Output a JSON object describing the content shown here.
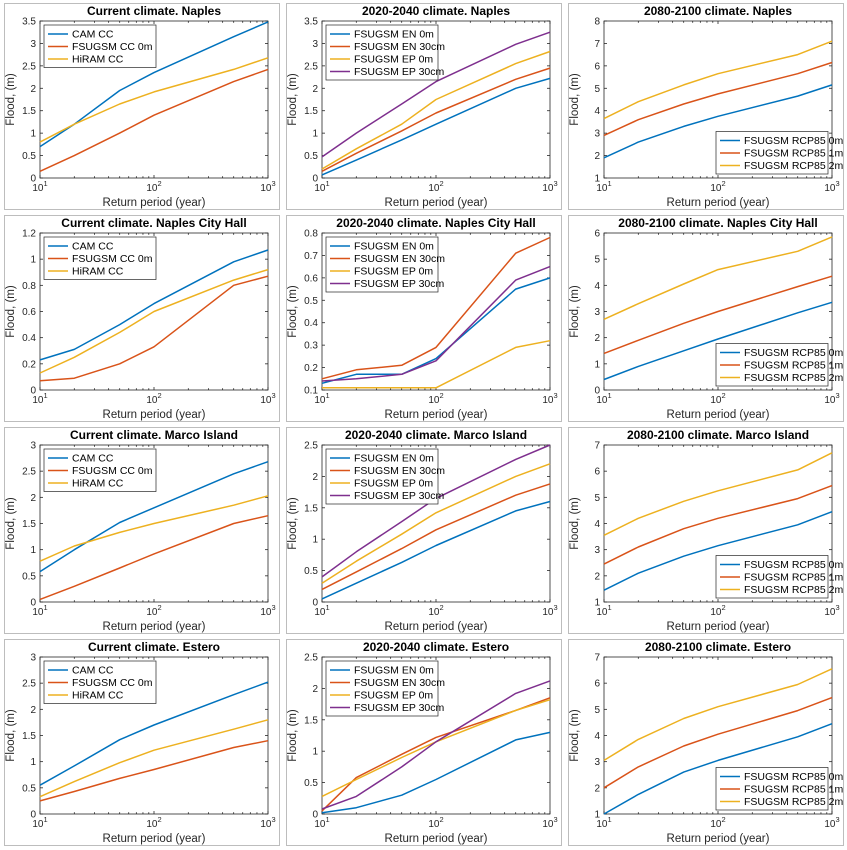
{
  "colors": [
    "#0072BD",
    "#D95319",
    "#EDB120",
    "#7E2F8E"
  ],
  "chart_data": [
    {
      "type": "line",
      "title": "Current climate. Naples",
      "xlabel": "Return period (year)",
      "ylabel": "Flood, (m)",
      "xscale": "log",
      "xlim": [
        10,
        1000
      ],
      "ylim": [
        0,
        3.5
      ],
      "yticks": [
        0,
        0.5,
        1,
        1.5,
        2,
        2.5,
        3,
        3.5
      ],
      "xticks": [
        "10^1",
        "10^2",
        "10^3"
      ],
      "legend": "top-left",
      "x": [
        10,
        20,
        50,
        100,
        500,
        1000
      ],
      "series": [
        {
          "name": "CAM CC",
          "values": [
            0.7,
            1.2,
            1.95,
            2.35,
            3.15,
            3.48
          ]
        },
        {
          "name": "FSUGSM CC 0m",
          "values": [
            0.15,
            0.5,
            1.0,
            1.4,
            2.15,
            2.42
          ]
        },
        {
          "name": "HiRAM CC",
          "values": [
            0.8,
            1.2,
            1.65,
            1.92,
            2.42,
            2.68
          ]
        }
      ]
    },
    {
      "type": "line",
      "title": "2020-2040 climate. Naples",
      "xlabel": "Return period (year)",
      "ylabel": "Flood, (m)",
      "xscale": "log",
      "xlim": [
        10,
        1000
      ],
      "ylim": [
        0,
        3.5
      ],
      "yticks": [
        0,
        0.5,
        1,
        1.5,
        2,
        2.5,
        3,
        3.5
      ],
      "xticks": [
        "10^1",
        "10^2",
        "10^3"
      ],
      "legend": "top-left",
      "x": [
        10,
        20,
        50,
        100,
        500,
        1000
      ],
      "series": [
        {
          "name": "FSUGSM EN 0m",
          "values": [
            0.07,
            0.4,
            0.85,
            1.2,
            2.0,
            2.22
          ]
        },
        {
          "name": "FSUGSM EN 30cm",
          "values": [
            0.15,
            0.55,
            1.05,
            1.45,
            2.2,
            2.45
          ]
        },
        {
          "name": "FSUGSM EP 0m",
          "values": [
            0.2,
            0.65,
            1.2,
            1.75,
            2.55,
            2.82
          ]
        },
        {
          "name": "FSUGSM EP 30cm",
          "values": [
            0.47,
            1.0,
            1.65,
            2.15,
            2.98,
            3.25
          ]
        }
      ]
    },
    {
      "type": "line",
      "title": "2080-2100 climate. Naples",
      "xlabel": "Return period (year)",
      "ylabel": "Flood, (m)",
      "xscale": "log",
      "xlim": [
        10,
        1000
      ],
      "ylim": [
        1,
        8
      ],
      "yticks": [
        1,
        2,
        3,
        4,
        5,
        6,
        7,
        8
      ],
      "xticks": [
        "10^1",
        "10^2",
        "10^3"
      ],
      "legend": "bottom-right",
      "x": [
        10,
        20,
        50,
        100,
        500,
        1000
      ],
      "series": [
        {
          "name": "FSUGSM RCP85 0m",
          "values": [
            1.9,
            2.6,
            3.3,
            3.75,
            4.65,
            5.15
          ]
        },
        {
          "name": "FSUGSM RCP85 1m",
          "values": [
            2.9,
            3.6,
            4.3,
            4.75,
            5.65,
            6.15
          ]
        },
        {
          "name": "FSUGSM RCP85 2m",
          "values": [
            3.65,
            4.4,
            5.15,
            5.65,
            6.5,
            7.1
          ]
        }
      ]
    },
    {
      "type": "line",
      "title": "Current climate. Naples City Hall",
      "xlabel": "Return period (year)",
      "ylabel": "Flood, (m)",
      "xscale": "log",
      "xlim": [
        10,
        1000
      ],
      "ylim": [
        0,
        1.2
      ],
      "yticks": [
        0,
        0.2,
        0.4,
        0.6,
        0.8,
        1,
        1.2
      ],
      "xticks": [
        "10^1",
        "10^2",
        "10^3"
      ],
      "legend": "top-left",
      "x": [
        10,
        20,
        50,
        100,
        500,
        1000
      ],
      "series": [
        {
          "name": "CAM CC",
          "values": [
            0.23,
            0.31,
            0.5,
            0.66,
            0.98,
            1.07
          ]
        },
        {
          "name": "FSUGSM CC 0m",
          "values": [
            0.07,
            0.09,
            0.2,
            0.33,
            0.8,
            0.87
          ]
        },
        {
          "name": "HiRAM CC",
          "values": [
            0.13,
            0.25,
            0.44,
            0.6,
            0.84,
            0.92
          ]
        }
      ]
    },
    {
      "type": "line",
      "title": "2020-2040 climate. Naples City Hall",
      "xlabel": "Return period (year)",
      "ylabel": "Flood, (m)",
      "xscale": "log",
      "xlim": [
        10,
        1000
      ],
      "ylim": [
        0.1,
        0.8
      ],
      "yticks": [
        0.1,
        0.2,
        0.3,
        0.4,
        0.5,
        0.6,
        0.7,
        0.8
      ],
      "xticks": [
        "10^1",
        "10^2",
        "10^3"
      ],
      "legend": "top-left",
      "x": [
        10,
        20,
        50,
        100,
        500,
        1000
      ],
      "series": [
        {
          "name": "FSUGSM EN 0m",
          "values": [
            0.13,
            0.17,
            0.17,
            0.24,
            0.55,
            0.6
          ]
        },
        {
          "name": "FSUGSM EN 30cm",
          "values": [
            0.15,
            0.19,
            0.21,
            0.29,
            0.71,
            0.78
          ]
        },
        {
          "name": "FSUGSM EP 0m",
          "values": [
            0.11,
            0.11,
            0.11,
            0.11,
            0.29,
            0.32
          ]
        },
        {
          "name": "FSUGSM EP 30cm",
          "values": [
            0.14,
            0.15,
            0.17,
            0.23,
            0.59,
            0.65
          ]
        }
      ]
    },
    {
      "type": "line",
      "title": "2080-2100 climate. Naples City Hall",
      "xlabel": "Return period (year)",
      "ylabel": "Flood, (m)",
      "xscale": "log",
      "xlim": [
        10,
        1000
      ],
      "ylim": [
        0,
        6
      ],
      "yticks": [
        0,
        1,
        2,
        3,
        4,
        5,
        6
      ],
      "xticks": [
        "10^1",
        "10^2",
        "10^3"
      ],
      "legend": "bottom-right",
      "x": [
        10,
        20,
        50,
        100,
        500,
        1000
      ],
      "series": [
        {
          "name": "FSUGSM RCP85 0m",
          "values": [
            0.4,
            0.9,
            1.5,
            1.95,
            2.95,
            3.35
          ]
        },
        {
          "name": "FSUGSM RCP85 1m",
          "values": [
            1.4,
            1.9,
            2.55,
            3.0,
            3.95,
            4.35
          ]
        },
        {
          "name": "FSUGSM RCP85 2m",
          "values": [
            2.7,
            3.3,
            4.05,
            4.6,
            5.3,
            5.85
          ]
        }
      ]
    },
    {
      "type": "line",
      "title": "Current climate. Marco Island",
      "xlabel": "Return period (year)",
      "ylabel": "Flood, (m)",
      "xscale": "log",
      "xlim": [
        10,
        1000
      ],
      "ylim": [
        0,
        3
      ],
      "yticks": [
        0,
        0.5,
        1,
        1.5,
        2,
        2.5,
        3
      ],
      "xticks": [
        "10^1",
        "10^2",
        "10^3"
      ],
      "legend": "top-left",
      "x": [
        10,
        20,
        50,
        100,
        500,
        1000
      ],
      "series": [
        {
          "name": "CAM CC",
          "values": [
            0.58,
            1.0,
            1.52,
            1.8,
            2.45,
            2.68
          ]
        },
        {
          "name": "FSUGSM CC 0m",
          "values": [
            0.05,
            0.3,
            0.65,
            0.92,
            1.5,
            1.65
          ]
        },
        {
          "name": "HiRAM CC",
          "values": [
            0.78,
            1.07,
            1.33,
            1.5,
            1.85,
            2.03
          ]
        }
      ]
    },
    {
      "type": "line",
      "title": "2020-2040 climate. Marco Island",
      "xlabel": "Return period (year)",
      "ylabel": "Flood, (m)",
      "xscale": "log",
      "xlim": [
        10,
        1000
      ],
      "ylim": [
        0,
        2.5
      ],
      "yticks": [
        0,
        0.5,
        1,
        1.5,
        2,
        2.5
      ],
      "xticks": [
        "10^1",
        "10^2",
        "10^3"
      ],
      "legend": "top-left",
      "x": [
        10,
        20,
        50,
        100,
        500,
        1000
      ],
      "series": [
        {
          "name": "FSUGSM EN 0m",
          "values": [
            0.05,
            0.3,
            0.63,
            0.9,
            1.45,
            1.6
          ]
        },
        {
          "name": "FSUGSM EN 30cm",
          "values": [
            0.2,
            0.48,
            0.85,
            1.15,
            1.7,
            1.88
          ]
        },
        {
          "name": "FSUGSM EP 0m",
          "values": [
            0.3,
            0.65,
            1.08,
            1.42,
            2.0,
            2.2
          ]
        },
        {
          "name": "FSUGSM EP 30cm",
          "values": [
            0.4,
            0.8,
            1.28,
            1.65,
            2.27,
            2.5
          ]
        }
      ]
    },
    {
      "type": "line",
      "title": "2080-2100 climate. Marco Island",
      "xlabel": "Return period (year)",
      "ylabel": "Flood, (m)",
      "xscale": "log",
      "xlim": [
        10,
        1000
      ],
      "ylim": [
        1,
        7
      ],
      "yticks": [
        1,
        2,
        3,
        4,
        5,
        6,
        7
      ],
      "xticks": [
        "10^1",
        "10^2",
        "10^3"
      ],
      "legend": "bottom-right",
      "x": [
        10,
        20,
        50,
        100,
        500,
        1000
      ],
      "series": [
        {
          "name": "FSUGSM RCP85 0m",
          "values": [
            1.45,
            2.1,
            2.75,
            3.15,
            3.95,
            4.45
          ]
        },
        {
          "name": "FSUGSM RCP85 1m",
          "values": [
            2.45,
            3.1,
            3.8,
            4.2,
            4.95,
            5.45
          ]
        },
        {
          "name": "FSUGSM RCP85 2m",
          "values": [
            3.55,
            4.2,
            4.85,
            5.25,
            6.05,
            6.7
          ]
        }
      ]
    },
    {
      "type": "line",
      "title": "Current climate. Estero",
      "xlabel": "Return period (year)",
      "ylabel": "Flood, (m)",
      "xscale": "log",
      "xlim": [
        10,
        1000
      ],
      "ylim": [
        0,
        3
      ],
      "yticks": [
        0,
        0.5,
        1,
        1.5,
        2,
        2.5,
        3
      ],
      "xticks": [
        "10^1",
        "10^2",
        "10^3"
      ],
      "legend": "top-left",
      "x": [
        10,
        20,
        50,
        100,
        500,
        1000
      ],
      "series": [
        {
          "name": "CAM CC",
          "values": [
            0.55,
            0.92,
            1.42,
            1.7,
            2.28,
            2.52
          ]
        },
        {
          "name": "FSUGSM CC 0m",
          "values": [
            0.25,
            0.43,
            0.68,
            0.85,
            1.27,
            1.4
          ]
        },
        {
          "name": "HiRAM CC",
          "values": [
            0.33,
            0.62,
            0.98,
            1.22,
            1.62,
            1.8
          ]
        }
      ]
    },
    {
      "type": "line",
      "title": "2020-2040 climate. Estero",
      "xlabel": "Return period (year)",
      "ylabel": "Flood, (m)",
      "xscale": "log",
      "xlim": [
        10,
        1000
      ],
      "ylim": [
        0,
        2.5
      ],
      "yticks": [
        0,
        0.5,
        1,
        1.5,
        2,
        2.5
      ],
      "xticks": [
        "10^1",
        "10^2",
        "10^3"
      ],
      "legend": "top-left",
      "x": [
        10,
        20,
        50,
        100,
        500,
        1000
      ],
      "series": [
        {
          "name": "FSUGSM EN 0m",
          "values": [
            0.02,
            0.1,
            0.3,
            0.55,
            1.18,
            1.3
          ]
        },
        {
          "name": "FSUGSM EN 30cm",
          "values": [
            0.05,
            0.58,
            0.95,
            1.22,
            1.65,
            1.85
          ]
        },
        {
          "name": "FSUGSM EP 0m",
          "values": [
            0.28,
            0.55,
            0.9,
            1.15,
            1.65,
            1.82
          ]
        },
        {
          "name": "FSUGSM EP 30cm",
          "values": [
            0.08,
            0.28,
            0.75,
            1.15,
            1.92,
            2.12
          ]
        }
      ]
    },
    {
      "type": "line",
      "title": "2080-2100 climate. Estero",
      "xlabel": "Return period (year)",
      "ylabel": "Flood, (m)",
      "xscale": "log",
      "xlim": [
        10,
        1000
      ],
      "ylim": [
        1,
        7
      ],
      "yticks": [
        1,
        2,
        3,
        4,
        5,
        6,
        7
      ],
      "xticks": [
        "10^1",
        "10^2",
        "10^3"
      ],
      "legend": "bottom-right",
      "x": [
        10,
        20,
        50,
        100,
        500,
        1000
      ],
      "series": [
        {
          "name": "FSUGSM RCP85 0m",
          "values": [
            1.0,
            1.75,
            2.6,
            3.05,
            3.95,
            4.45
          ]
        },
        {
          "name": "FSUGSM RCP85 1m",
          "values": [
            2.0,
            2.8,
            3.6,
            4.05,
            4.95,
            5.45
          ]
        },
        {
          "name": "FSUGSM RCP85 2m",
          "values": [
            3.05,
            3.85,
            4.65,
            5.1,
            5.95,
            6.55
          ]
        }
      ]
    }
  ]
}
